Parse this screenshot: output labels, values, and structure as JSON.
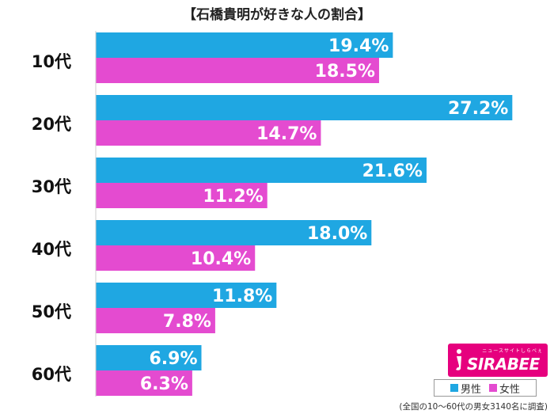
{
  "chart_data": {
    "type": "bar",
    "orientation": "horizontal",
    "title": "【石橋貴明が好きな人の割合】",
    "categories": [
      "10代",
      "20代",
      "30代",
      "40代",
      "50代",
      "60代"
    ],
    "series": [
      {
        "name": "男性",
        "color": "#1fa7e2",
        "values": [
          19.4,
          27.2,
          21.6,
          18.0,
          11.8,
          6.9
        ],
        "labels": [
          "19.4%",
          "27.2%",
          "21.6%",
          "18.0%",
          "11.8%",
          "6.9%"
        ]
      },
      {
        "name": "女性",
        "color": "#e44bd0",
        "values": [
          18.5,
          14.7,
          11.2,
          10.4,
          7.8,
          6.3
        ],
        "labels": [
          "18.5%",
          "14.7%",
          "11.2%",
          "10.4%",
          "7.8%",
          "6.3%"
        ]
      }
    ],
    "xlim": [
      0,
      30
    ],
    "grid": false,
    "legend": "bottom-right"
  },
  "logo": {
    "tagline": "ニュースサイトしらべぇ",
    "word": "SIRABEE",
    "color": "#e6007e"
  },
  "footnote": "(全国の10〜60代の男女3140名に調査)"
}
